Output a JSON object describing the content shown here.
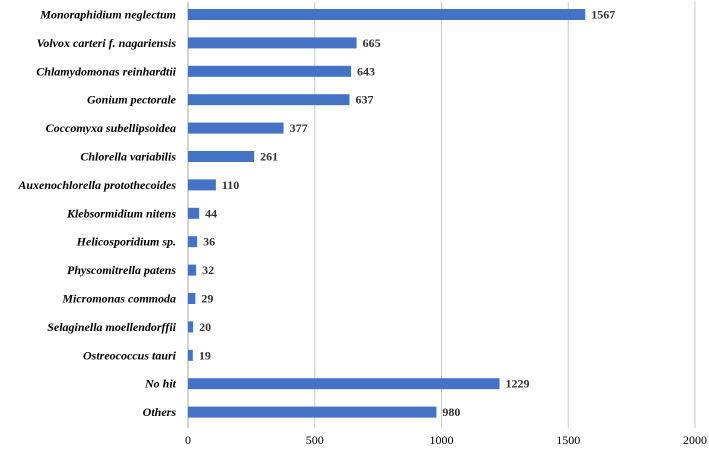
{
  "chart_data": {
    "type": "bar",
    "orientation": "horizontal",
    "categories": [
      "Monoraphidium neglectum",
      "Volvox carteri f. nagariensis",
      "Chlamydomonas reinhardtii",
      "Gonium pectorale",
      "Coccomyxa subellipsoidea",
      "Chlorella variabilis",
      "Auxenochlorella protothecoides",
      "Klebsormidium nitens",
      "Helicosporidium sp.",
      "Physcomitrella patens",
      "Micromonas commoda",
      "Selaginella moellendorffii",
      "Ostreococcus tauri",
      "No hit",
      "Others"
    ],
    "values": [
      1567,
      665,
      643,
      637,
      377,
      261,
      110,
      44,
      36,
      32,
      29,
      20,
      19,
      1229,
      980
    ],
    "value_labels": [
      "1567",
      "665",
      "643",
      "637",
      "377",
      "261",
      "110",
      "44",
      "36",
      "32",
      "29",
      "20",
      "19",
      "1229",
      "980"
    ],
    "x_ticks": [
      "0",
      "500",
      "1000",
      "1500",
      "2000"
    ],
    "xlim": [
      0,
      2000
    ],
    "grid": "vertical",
    "bar_color": "#4472C4",
    "title": "",
    "xlabel": "",
    "ylabel": ""
  }
}
